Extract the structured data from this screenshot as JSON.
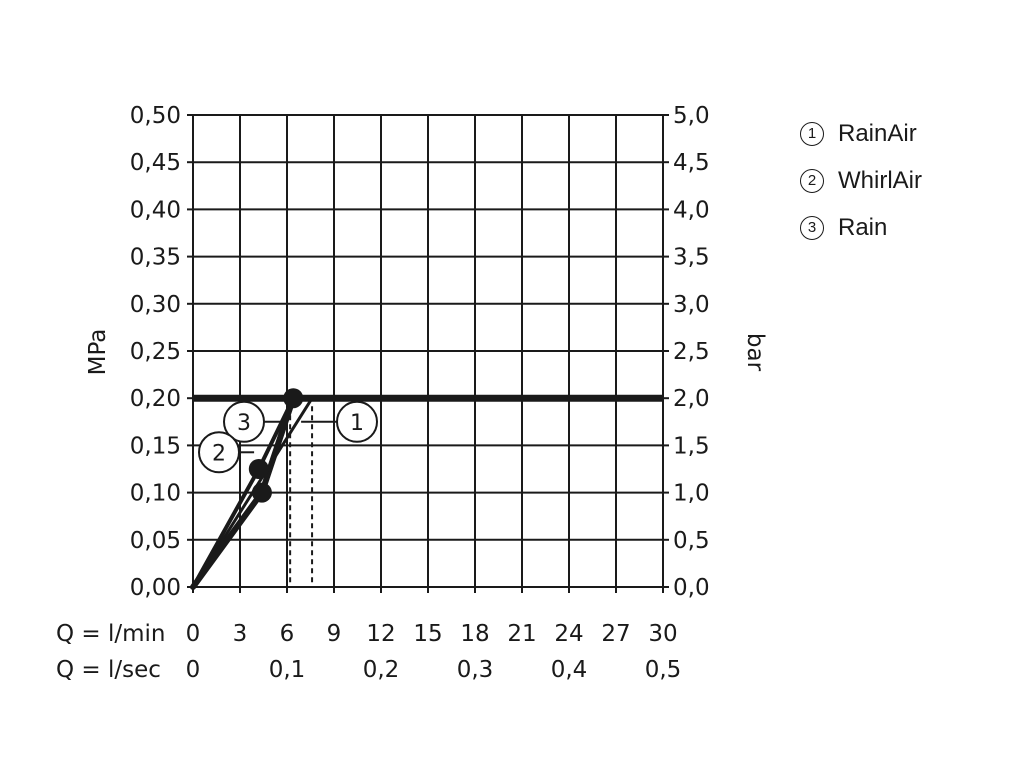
{
  "chart_data": {
    "type": "line",
    "title": "",
    "ylabel": "MPa",
    "ylabel_right": "bar",
    "ylim": [
      0,
      0.5
    ],
    "y_ticks": [
      "0,00",
      "0,05",
      "0,10",
      "0,15",
      "0,20",
      "0,25",
      "0,30",
      "0,35",
      "0,40",
      "0,45",
      "0,50"
    ],
    "y_right_ticks": [
      "0,0",
      "0,5",
      "1,0",
      "1,5",
      "2,0",
      "2,5",
      "3,0",
      "3,5",
      "4,0",
      "4,5",
      "5,0"
    ],
    "xlim": [
      0,
      30
    ],
    "x_label_min": "Q = l/min",
    "x_label_sec": "Q = l/sec",
    "x_ticks_min": [
      "0",
      "3",
      "6",
      "9",
      "12",
      "15",
      "18",
      "21",
      "24",
      "27",
      "30"
    ],
    "x_ticks_sec": [
      "0",
      "0,1",
      "0,2",
      "0,3",
      "0,4",
      "0,5"
    ],
    "reference_pressure": 0.2,
    "series": [
      {
        "name": "RainAir",
        "id": "1",
        "points": [
          [
            0,
            0
          ],
          [
            7.6,
            0.2
          ]
        ]
      },
      {
        "name": "WhirlAir",
        "id": "2",
        "points": [
          [
            0,
            0
          ],
          [
            4.2,
            0.125
          ],
          [
            6.4,
            0.2
          ]
        ]
      },
      {
        "name": "Rain",
        "id": "3",
        "points": [
          [
            0,
            0
          ],
          [
            4.4,
            0.1
          ],
          [
            6.4,
            0.2
          ]
        ]
      }
    ],
    "markers": [
      [
        6.4,
        0.2
      ],
      [
        4.2,
        0.125
      ],
      [
        4.4,
        0.1
      ]
    ],
    "dashed_x": [
      6.2,
      7.6
    ],
    "legend": [
      {
        "num": "1",
        "label": "RainAir"
      },
      {
        "num": "2",
        "label": "WhirlAir"
      },
      {
        "num": "3",
        "label": "Rain"
      }
    ],
    "legend_position": "top-right",
    "grid": true
  }
}
